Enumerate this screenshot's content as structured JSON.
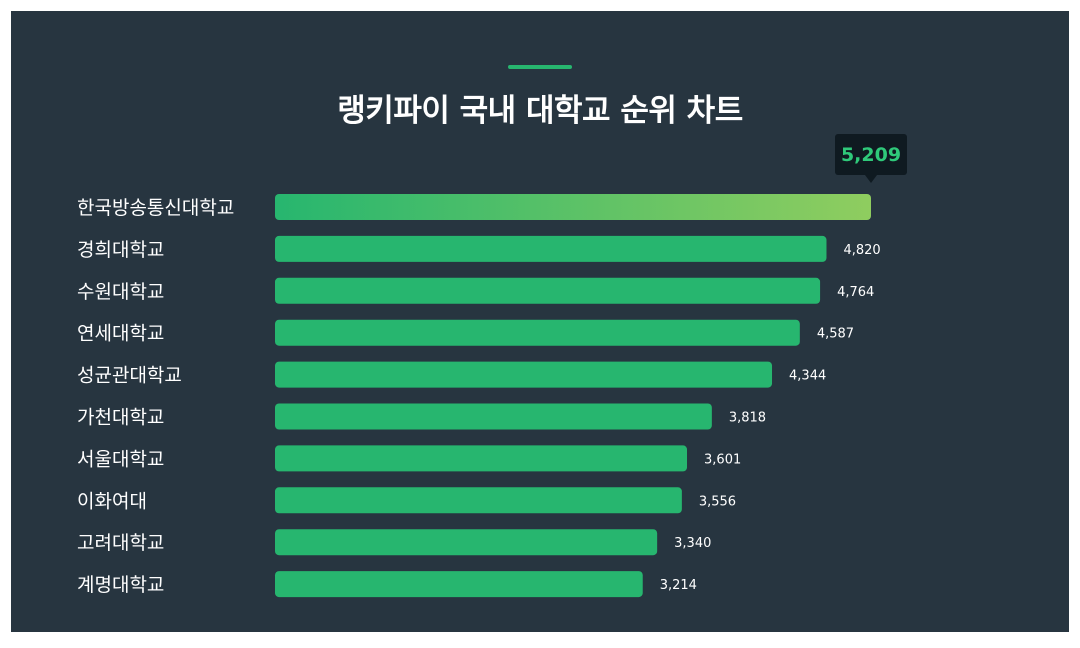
{
  "chart_data": {
    "type": "bar",
    "orientation": "horizontal",
    "title": "랭키파이 국내 대학교 순위 차트",
    "categories": [
      "한국방송통신대학교",
      "경희대학교",
      "수원대학교",
      "연세대학교",
      "성균관대학교",
      "가천대학교",
      "서울대학교",
      "이화여대",
      "고려대학교",
      "계명대학교"
    ],
    "values": [
      5209,
      4820,
      4764,
      4587,
      4344,
      3818,
      3601,
      3556,
      3340,
      3214
    ],
    "value_labels": [
      "5,209",
      "4,820",
      "4,764",
      "4,587",
      "4,344",
      "3,818",
      "3,601",
      "3,556",
      "3,340",
      "3,214"
    ],
    "highlight_index": 0,
    "grid": false,
    "legend": "none"
  },
  "colors": {
    "background": "#273540",
    "bar": "#27b66f",
    "highlight_gradient_start": "#27b66f",
    "highlight_gradient_end": "#8fcd5f",
    "callout_bg": "#0f1a21",
    "callout_text": "#2fc97a",
    "text": "#ffffff",
    "accent": "#27b66f"
  }
}
